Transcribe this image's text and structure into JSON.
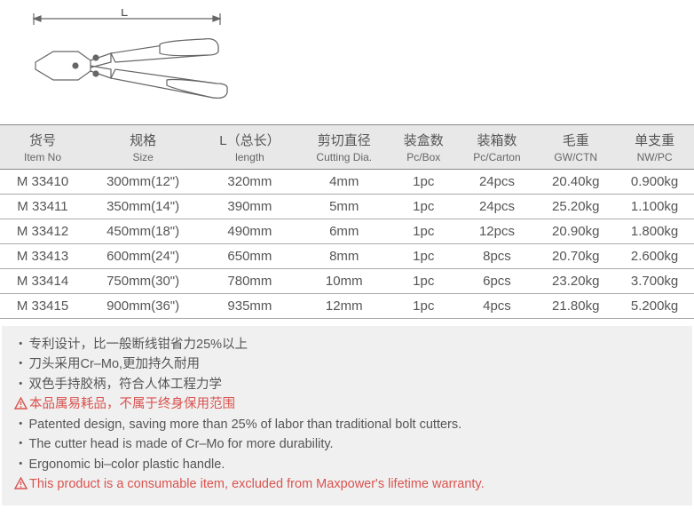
{
  "diagram": {
    "length_label": "L",
    "stroke": "#666666",
    "line_width": 1.2
  },
  "table": {
    "header_bg": "#e8e8e8",
    "border_color": "#888888",
    "row_border_color": "#aaaaaa",
    "columns": [
      {
        "cn": "货号",
        "en": "Item No"
      },
      {
        "cn": "规格",
        "en": "Size"
      },
      {
        "cn": "L（总长）",
        "en": "length"
      },
      {
        "cn": "剪切直径",
        "en": "Cutting Dia."
      },
      {
        "cn": "装盒数",
        "en": "Pc/Box"
      },
      {
        "cn": "装箱数",
        "en": "Pc/Carton"
      },
      {
        "cn": "毛重",
        "en": "GW/CTN"
      },
      {
        "cn": "单支重",
        "en": "NW/PC"
      }
    ],
    "rows": [
      [
        "M 33410",
        "300mm(12\")",
        "320mm",
        "4mm",
        "1pc",
        "24pcs",
        "20.40kg",
        "0.900kg"
      ],
      [
        "M 33411",
        "350mm(14\")",
        "390mm",
        "5mm",
        "1pc",
        "24pcs",
        "25.20kg",
        "1.100kg"
      ],
      [
        "M 33412",
        "450mm(18\")",
        "490mm",
        "6mm",
        "1pc",
        "12pcs",
        "20.90kg",
        "1.800kg"
      ],
      [
        "M 33413",
        "600mm(24\")",
        "650mm",
        "8mm",
        "1pc",
        "8pcs",
        "20.70kg",
        "2.600kg"
      ],
      [
        "M 33414",
        "750mm(30\")",
        "780mm",
        "10mm",
        "1pc",
        "6pcs",
        "23.20kg",
        "3.700kg"
      ],
      [
        "M 33415",
        "900mm(36\")",
        "935mm",
        "12mm",
        "1pc",
        "4pcs",
        "21.80kg",
        "5.200kg"
      ]
    ]
  },
  "notes": {
    "bg": "#f0f0f0",
    "text_color": "#555555",
    "warn_color": "#d9534f",
    "cn": [
      "专利设计，比一般断线钳省力25%以上",
      "刀头采用Cr–Mo,更加持久耐用",
      "双色手持胶柄，符合人体工程力学"
    ],
    "cn_warn": "本品属易耗品，不属于终身保用范围",
    "en": [
      "Patented design, saving more than 25% of labor than traditional bolt cutters.",
      "The cutter head is made of Cr–Mo for more durability.",
      "Ergonomic bi–color plastic handle."
    ],
    "en_warn": "This product is a consumable item, excluded from Maxpower's lifetime warranty."
  }
}
